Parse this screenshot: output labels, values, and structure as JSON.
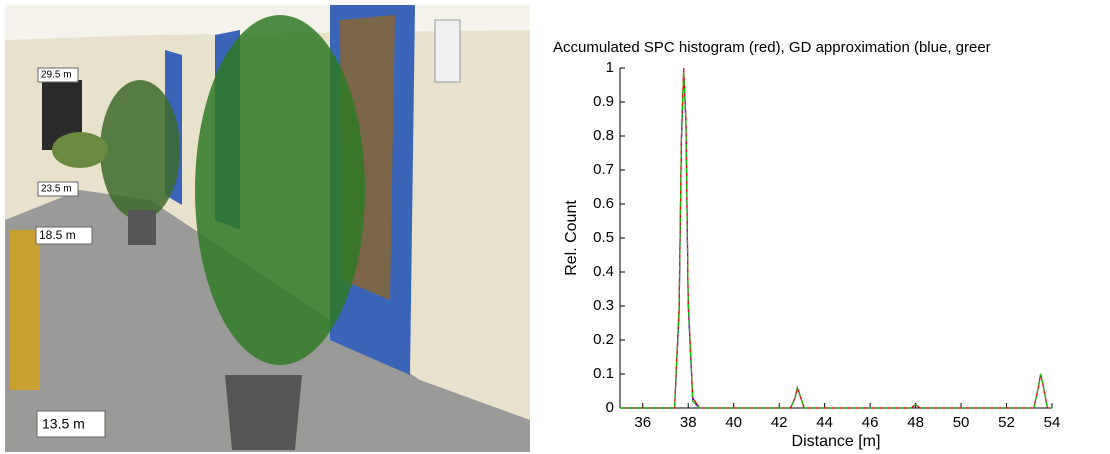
{
  "photo": {
    "labels": [
      "29.5 m",
      "23.5 m",
      "18.5 m",
      "13.5 m"
    ]
  },
  "chart_data": {
    "type": "line",
    "title": "Accumulated SPC histogram (red), GD approximation (blue, greer",
    "xlabel": "Distance [m]",
    "ylabel": "Rel. Count",
    "x": [
      35,
      37.4,
      37.6,
      37.7,
      37.8,
      37.9,
      38.0,
      38.2,
      38.5,
      42.5,
      42.7,
      42.8,
      42.9,
      43.1,
      47.8,
      48,
      48.2,
      53.2,
      53.4,
      53.5,
      53.6,
      53.8,
      54
    ],
    "series": [
      {
        "color": "#0000ff",
        "values": [
          0,
          0,
          0.28,
          0.78,
          0.99,
          0.84,
          0.3,
          0.02,
          0,
          0,
          0.03,
          0.06,
          0.04,
          0,
          0,
          0.01,
          0,
          0,
          0.06,
          0.1,
          0.07,
          0,
          0
        ]
      },
      {
        "color": "#ff0000",
        "values": [
          0,
          0,
          0.3,
          0.8,
          1,
          0.85,
          0.32,
          0.03,
          0,
          0,
          0.03,
          0.06,
          0.04,
          0,
          0,
          0.01,
          0,
          0,
          0.06,
          0.1,
          0.07,
          0,
          0
        ]
      },
      {
        "color": "#00cc00",
        "values": [
          0,
          0,
          0.29,
          0.79,
          0.99,
          0.84,
          0.31,
          0.02,
          0,
          0,
          0.03,
          0.06,
          0.04,
          0,
          0,
          0.01,
          0,
          0,
          0.06,
          0.1,
          0.07,
          0,
          0
        ]
      }
    ],
    "xlim": [
      35,
      54
    ],
    "xticks": [
      36,
      38,
      40,
      42,
      44,
      46,
      48,
      50,
      52,
      54
    ],
    "ylim": [
      0,
      1
    ],
    "yticks": [
      0,
      0.1,
      0.2,
      0.3,
      0.4,
      0.5,
      0.6,
      0.7,
      0.8,
      0.9,
      1
    ]
  }
}
